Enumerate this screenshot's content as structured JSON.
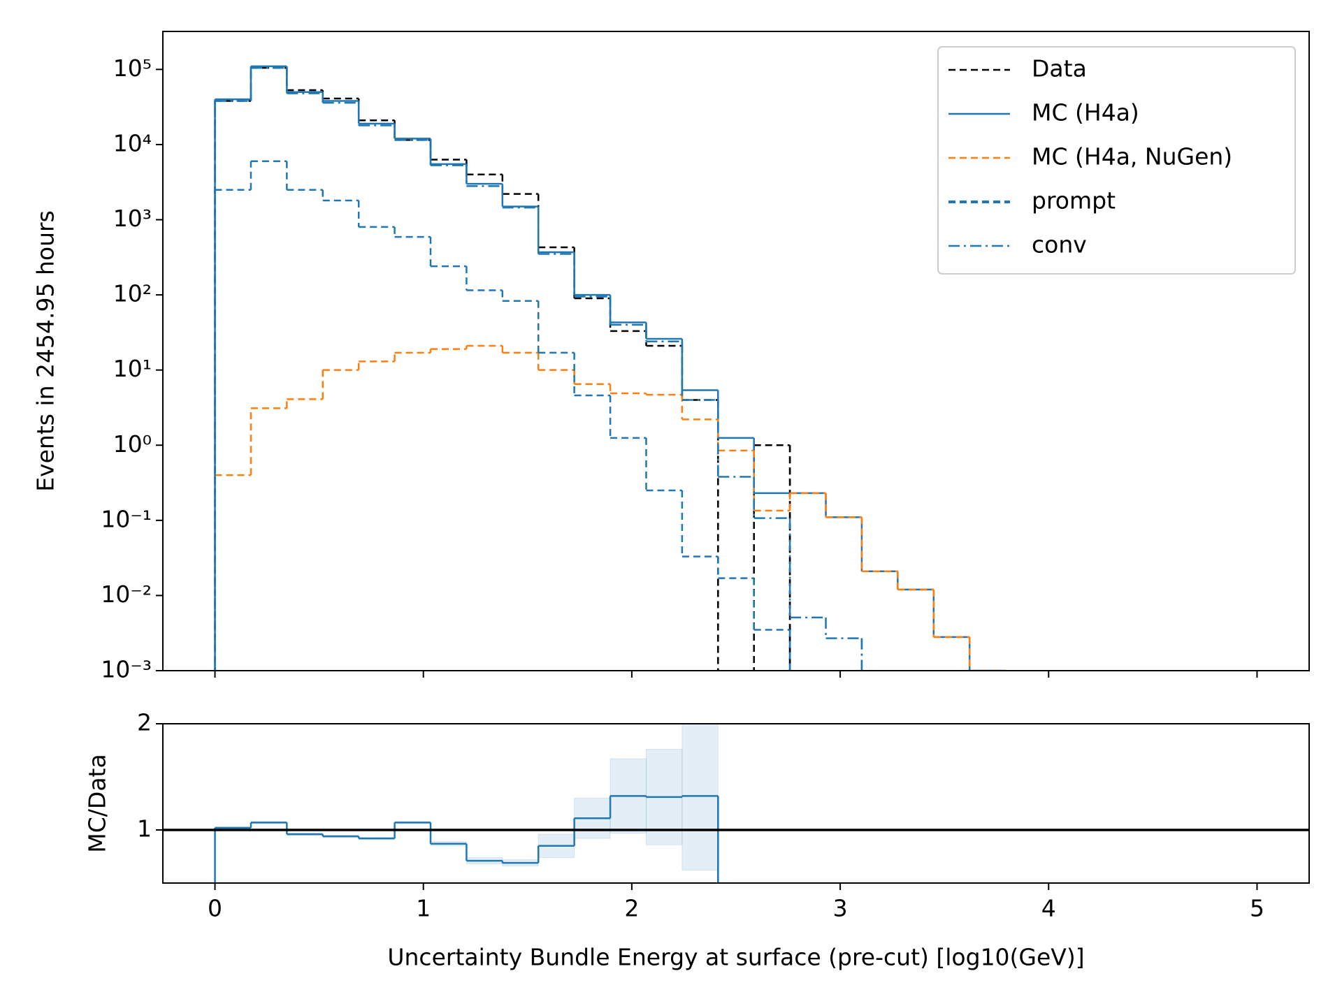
{
  "chart_data": [
    {
      "type": "histogram",
      "ylabel": "Events in 2454.95 hours",
      "bins": [
        0,
        0.1724,
        0.3448,
        0.5172,
        0.6897,
        0.8621,
        1.0345,
        1.2069,
        1.3793,
        1.5517,
        1.7241,
        1.8966,
        2.069,
        2.2414,
        2.4138,
        2.5862,
        2.7586,
        2.931,
        3.1034,
        3.2759,
        3.4483,
        3.6207,
        3.7931,
        3.9655,
        4.1379,
        4.3103,
        4.4828,
        4.6552,
        4.8276,
        5.0
      ],
      "xlim": [
        -0.25,
        5.25
      ],
      "ylim": [
        0.001,
        320000
      ],
      "log_y": true,
      "yticks": [
        {
          "value": 0.001,
          "label": "10⁻³"
        },
        {
          "value": 0.01,
          "label": "10⁻²"
        },
        {
          "value": 0.1,
          "label": "10⁻¹"
        },
        {
          "value": 1,
          "label": "10⁰"
        },
        {
          "value": 10,
          "label": "10¹"
        },
        {
          "value": 100,
          "label": "10²"
        },
        {
          "value": 1000,
          "label": "10³"
        },
        {
          "value": 10000,
          "label": "10⁴"
        },
        {
          "value": 100000,
          "label": "10⁵"
        }
      ],
      "legend": "upper right",
      "series": [
        {
          "name": "Data",
          "color": "#000000",
          "linestyle": "dashed",
          "values": [
            38000,
            105000,
            53000,
            41000,
            21000,
            11500,
            6300,
            4000,
            2200,
            430,
            90,
            33,
            21,
            4.0,
            null,
            1.0,
            null,
            null,
            null,
            null,
            null,
            null,
            null,
            null,
            null,
            null,
            null,
            null,
            null
          ]
        },
        {
          "name": "MC (H4a)",
          "color": "#1f77b4",
          "linestyle": "solid",
          "values": [
            40000,
            110000,
            50000,
            38000,
            19000,
            12000,
            5500,
            3000,
            1500,
            370,
            100,
            43,
            26,
            5.4,
            1.25,
            0.23,
            0.23,
            0.11,
            0.021,
            0.012,
            0.0028,
            0.001,
            null,
            null,
            null,
            null,
            null,
            null,
            null
          ]
        },
        {
          "name": "MC (H4a, NuGen)",
          "color": "#ff7f0e",
          "linestyle": "dashed",
          "values": [
            0.4,
            3.1,
            4.1,
            10,
            13,
            17,
            19,
            21,
            17,
            10,
            6.5,
            4.9,
            4.7,
            2.2,
            0.85,
            0.135,
            0.23,
            0.11,
            0.021,
            0.012,
            0.0028,
            0.001,
            null,
            null,
            null,
            null,
            null,
            null,
            null
          ]
        },
        {
          "name": "prompt",
          "color": "#1f77b4",
          "linestyle": "dashed",
          "values": [
            2500,
            6000,
            2500,
            1800,
            800,
            590,
            240,
            115,
            83,
            17,
            4.6,
            1.25,
            0.25,
            0.033,
            0.017,
            0.0035,
            null,
            null,
            null,
            null,
            null,
            null,
            null,
            null,
            null,
            null,
            null,
            null,
            null
          ]
        },
        {
          "name": "conv",
          "color": "#1f77b4",
          "linestyle": "dashdot",
          "values": [
            38000,
            105000,
            48000,
            36000,
            18000,
            11500,
            5300,
            2800,
            1450,
            350,
            95,
            40,
            24,
            4,
            0.38,
            0.107,
            0.0051,
            0.0027,
            null,
            null,
            null,
            null,
            null,
            null,
            null,
            null,
            null,
            null,
            null
          ]
        }
      ]
    },
    {
      "type": "histogram",
      "ylabel": "MC/Data",
      "xlabel": "Uncertainty Bundle Energy at surface (pre-cut) [log10(GeV)]",
      "bins": [
        0,
        0.1724,
        0.3448,
        0.5172,
        0.6897,
        0.8621,
        1.0345,
        1.2069,
        1.3793,
        1.5517,
        1.7241,
        1.8966,
        2.069,
        2.2414,
        2.4138,
        2.5862,
        2.7586,
        2.931,
        3.1034,
        3.2759,
        3.4483,
        3.6207,
        3.7931,
        3.9655,
        4.1379,
        4.3103,
        4.4828,
        4.6552,
        4.8276,
        5.0
      ],
      "xlim": [
        -0.25,
        5.25
      ],
      "xticks": [
        0,
        1,
        2,
        3,
        4,
        5
      ],
      "ylim": [
        0.5,
        2
      ],
      "yticks": [
        1,
        2
      ],
      "hline": 1,
      "series": [
        {
          "color": "#1f77b4",
          "linestyle": "solid",
          "values": [
            1.02,
            1.07,
            0.96,
            0.94,
            0.92,
            1.07,
            0.87,
            0.71,
            0.69,
            0.85,
            1.11,
            1.32,
            1.31,
            1.32,
            null,
            null,
            null,
            null,
            null,
            null,
            null,
            null,
            null,
            null,
            null,
            null,
            null,
            null,
            null
          ],
          "errors": [
            0.01,
            0.01,
            0.01,
            0.01,
            0.01,
            0.01,
            0.02,
            0.03,
            0.03,
            0.11,
            0.19,
            0.35,
            0.45,
            0.7,
            null,
            null,
            null,
            null,
            null,
            null,
            null,
            null,
            null,
            null,
            null,
            null,
            null,
            null,
            null
          ]
        }
      ]
    }
  ]
}
